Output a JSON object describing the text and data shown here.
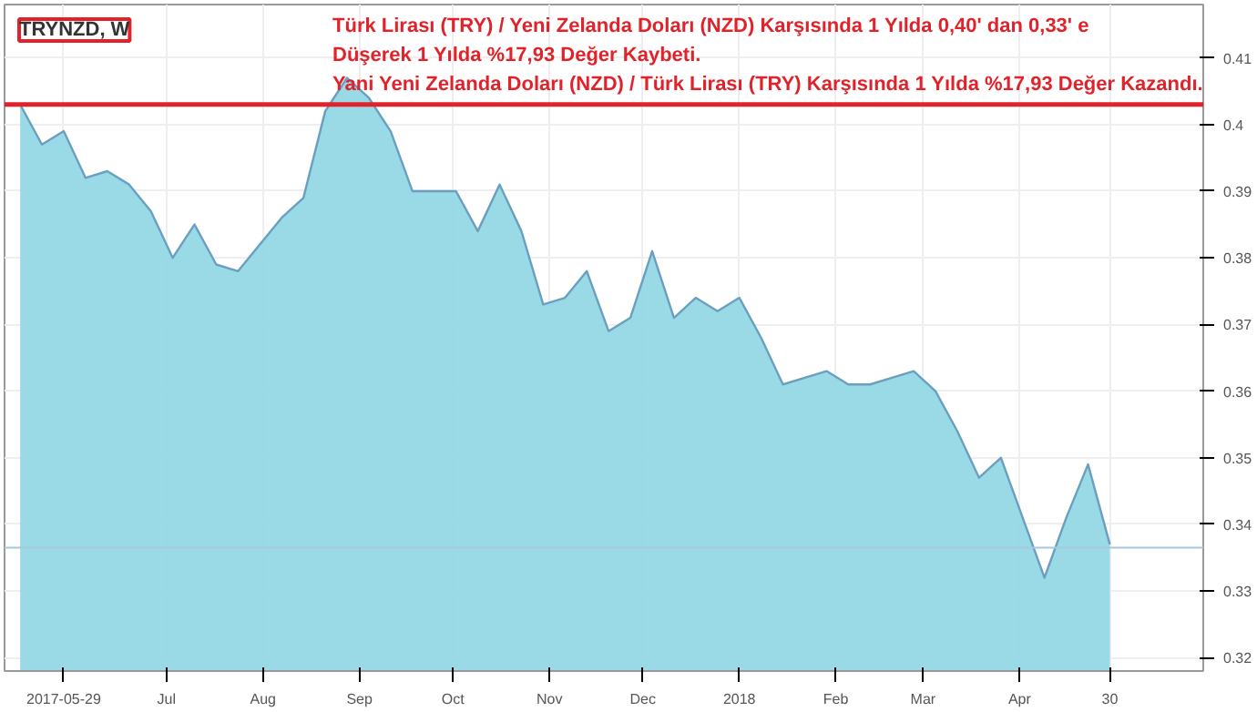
{
  "chart_data": {
    "type": "area",
    "title": "TRYNZD, W",
    "annotations": [
      "Türk Lirası (TRY) / Yeni Zelanda Doları (NZD) Karşısında 1 Yılda 0,40' dan 0,33' e Düşerek 1 Yılda %17,93 Değer Kaybeti.",
      "Yani Yeni Zelanda Doları (NZD) / Türk Lirası (TRY) Karşısında 1 Yılda %17,93 Değer Kazandı."
    ],
    "x": [
      "2017-05-15",
      "2017-05-22",
      "2017-05-29",
      "2017-06-05",
      "2017-06-12",
      "2017-06-19",
      "2017-06-26",
      "2017-07-03",
      "2017-07-10",
      "2017-07-17",
      "2017-07-24",
      "2017-07-31",
      "2017-08-07",
      "2017-08-14",
      "2017-08-21",
      "2017-08-28",
      "2017-09-04",
      "2017-09-11",
      "2017-09-18",
      "2017-09-25",
      "2017-10-02",
      "2017-10-09",
      "2017-10-16",
      "2017-10-23",
      "2017-10-30",
      "2017-11-06",
      "2017-11-13",
      "2017-11-20",
      "2017-11-27",
      "2017-12-04",
      "2017-12-11",
      "2017-12-18",
      "2017-12-25",
      "2018-01-01",
      "2018-01-08",
      "2018-01-15",
      "2018-01-22",
      "2018-01-29",
      "2018-02-05",
      "2018-02-12",
      "2018-02-19",
      "2018-02-26",
      "2018-03-05",
      "2018-03-12",
      "2018-03-19",
      "2018-03-26",
      "2018-04-02",
      "2018-04-09",
      "2018-04-16",
      "2018-04-23",
      "2018-04-30"
    ],
    "series": [
      {
        "color": "#8fd6e3",
        "values": [
          0.403,
          0.397,
          0.399,
          0.392,
          0.393,
          0.391,
          0.387,
          0.38,
          0.385,
          0.379,
          0.378,
          0.382,
          0.386,
          0.389,
          0.402,
          0.407,
          0.404,
          0.399,
          0.39,
          0.39,
          0.39,
          0.384,
          0.391,
          0.384,
          0.373,
          0.374,
          0.378,
          0.369,
          0.371,
          0.381,
          0.371,
          0.374,
          0.372,
          0.374,
          0.368,
          0.361,
          0.362,
          0.363,
          0.361,
          0.361,
          0.362,
          0.363,
          0.36,
          0.354,
          0.347,
          0.35,
          0.341,
          0.332,
          0.341,
          0.349,
          0.337
        ]
      }
    ],
    "xlim": [
      "2017-05-10",
      "2018-05-30"
    ],
    "xticks": [
      {
        "value": "2017-05-29",
        "label": "2017-05-29"
      },
      {
        "value": "2017-07-01",
        "label": "Jul"
      },
      {
        "value": "2017-08-01",
        "label": "Aug"
      },
      {
        "value": "2017-09-01",
        "label": "Sep"
      },
      {
        "value": "2017-10-01",
        "label": "Oct"
      },
      {
        "value": "2017-11-01",
        "label": "Nov"
      },
      {
        "value": "2017-12-01",
        "label": "Dec"
      },
      {
        "value": "2018-01-01",
        "label": "2018"
      },
      {
        "value": "2018-02-01",
        "label": "Feb"
      },
      {
        "value": "2018-03-01",
        "label": "Mar"
      },
      {
        "value": "2018-04-01",
        "label": "Apr"
      },
      {
        "value": "2018-04-30",
        "label": "30"
      }
    ],
    "ylim": [
      0.318,
      0.418
    ],
    "yticks": [
      0.32,
      0.33,
      0.34,
      0.35,
      0.36,
      0.37,
      0.38,
      0.39,
      0.4,
      0.41
    ],
    "ref_lines": [
      {
        "axis": "y",
        "value": 0.403,
        "color": "#e0232b"
      },
      {
        "axis": "y",
        "value": 0.3365,
        "color": "#a8c8dc"
      }
    ],
    "grid": true
  }
}
